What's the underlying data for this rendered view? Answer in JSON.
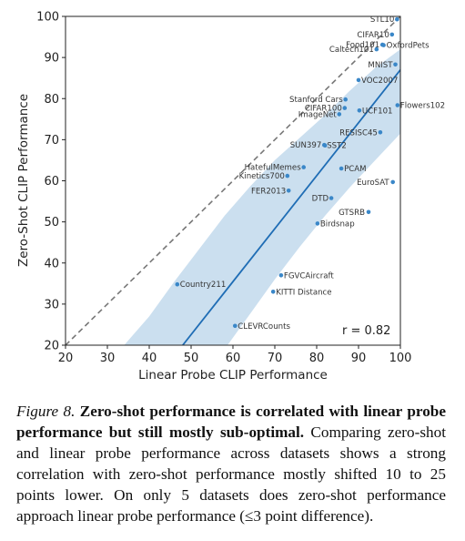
{
  "chart_data": {
    "type": "scatter",
    "xlabel": "Linear Probe CLIP Performance",
    "ylabel": "Zero-Shot CLIP Performance",
    "xlim": [
      20,
      100
    ],
    "ylim": [
      20,
      100
    ],
    "xticks": [
      20,
      30,
      40,
      50,
      60,
      70,
      80,
      90,
      100
    ],
    "yticks": [
      20,
      30,
      40,
      50,
      60,
      70,
      80,
      90,
      100
    ],
    "grid": false,
    "annotation": "r = 0.82",
    "colors": {
      "points": "#3a87c8",
      "fit_line": "#1f6db5",
      "band": "#b9d4ea",
      "diagonal": "#777777"
    },
    "diagonal": {
      "style": "dashed",
      "x": [
        20,
        100
      ],
      "y": [
        20,
        100
      ]
    },
    "fit_line": {
      "x": [
        48,
        100
      ],
      "y": [
        20,
        87
      ]
    },
    "confidence_band": {
      "x": [
        34,
        40,
        46,
        52,
        58,
        64,
        70,
        76,
        82,
        88,
        94,
        100
      ],
      "upper": [
        20,
        27,
        35.5,
        43.5,
        51.5,
        58.5,
        65,
        70.5,
        76,
        82,
        87.5,
        92
      ],
      "lower": [
        -2,
        3,
        8,
        13,
        19,
        27.5,
        36,
        44,
        51.5,
        58.5,
        65,
        71.5
      ]
    },
    "points": [
      {
        "label": "STL10",
        "x": 99.2,
        "y": 99.3,
        "anchor": "end",
        "dx": -3,
        "dy": 3
      },
      {
        "label": "CIFAR10",
        "x": 98.0,
        "y": 95.6,
        "anchor": "end",
        "dx": -3,
        "dy": 3
      },
      {
        "label": "Food101",
        "x": 95.7,
        "y": 93.1,
        "anchor": "end",
        "dx": -3,
        "dy": 3
      },
      {
        "label": "OxfordPets",
        "x": 96.0,
        "y": 93.0,
        "anchor": "start",
        "dx": 3,
        "dy": 3
      },
      {
        "label": "Caltech101",
        "x": 94.3,
        "y": 92.0,
        "anchor": "end",
        "dx": -3,
        "dy": 3
      },
      {
        "label": "MNIST",
        "x": 98.8,
        "y": 88.3,
        "anchor": "end",
        "dx": -3,
        "dy": 3
      },
      {
        "label": "VOC2007",
        "x": 90.0,
        "y": 84.5,
        "anchor": "start",
        "dx": 3,
        "dy": 3
      },
      {
        "label": "Flowers102",
        "x": 99.3,
        "y": 78.4,
        "anchor": "start",
        "dx": 3,
        "dy": 3
      },
      {
        "label": "Stanford Cars",
        "x": 86.9,
        "y": 79.8,
        "anchor": "end",
        "dx": -3,
        "dy": 3
      },
      {
        "label": "CIFAR100",
        "x": 86.7,
        "y": 77.7,
        "anchor": "end",
        "dx": -3,
        "dy": 3
      },
      {
        "label": "ImageNet",
        "x": 85.4,
        "y": 76.2,
        "anchor": "end",
        "dx": -3,
        "dy": 3
      },
      {
        "label": "UCF101",
        "x": 90.2,
        "y": 77.1,
        "anchor": "start",
        "dx": 3,
        "dy": 3
      },
      {
        "label": "RESISC45",
        "x": 95.2,
        "y": 71.8,
        "anchor": "end",
        "dx": -3,
        "dy": 3
      },
      {
        "label": "SUN397",
        "x": 81.8,
        "y": 68.7,
        "anchor": "end",
        "dx": -3,
        "dy": 3
      },
      {
        "label": "SST2",
        "x": 82.0,
        "y": 68.6,
        "anchor": "start",
        "dx": 2,
        "dy": 3
      },
      {
        "label": "HatefulMemes",
        "x": 76.9,
        "y": 63.3,
        "anchor": "end",
        "dx": -3,
        "dy": 3
      },
      {
        "label": "Kinetics700",
        "x": 73.0,
        "y": 61.2,
        "anchor": "end",
        "dx": -3,
        "dy": 3
      },
      {
        "label": "PCAM",
        "x": 85.9,
        "y": 63.0,
        "anchor": "start",
        "dx": 3,
        "dy": 3
      },
      {
        "label": "EuroSAT",
        "x": 98.2,
        "y": 59.7,
        "anchor": "end",
        "dx": -4,
        "dy": 3
      },
      {
        "label": "FER2013",
        "x": 73.3,
        "y": 57.6,
        "anchor": "end",
        "dx": -3,
        "dy": 3
      },
      {
        "label": "DTD",
        "x": 83.5,
        "y": 55.8,
        "anchor": "end",
        "dx": -3,
        "dy": 3
      },
      {
        "label": "GTSRB",
        "x": 92.4,
        "y": 52.4,
        "anchor": "end",
        "dx": -4,
        "dy": 3
      },
      {
        "label": "Birdsnap",
        "x": 80.2,
        "y": 49.6,
        "anchor": "start",
        "dx": 3,
        "dy": 3
      },
      {
        "label": "Country211",
        "x": 46.7,
        "y": 34.8,
        "anchor": "start",
        "dx": 3,
        "dy": 3
      },
      {
        "label": "FGVCAircraft",
        "x": 71.5,
        "y": 37.0,
        "anchor": "start",
        "dx": 3,
        "dy": 3
      },
      {
        "label": "KITTI Distance",
        "x": 69.6,
        "y": 33.0,
        "anchor": "start",
        "dx": 3,
        "dy": 3
      },
      {
        "label": "CLEVRCounts",
        "x": 60.5,
        "y": 24.7,
        "anchor": "start",
        "dx": 3,
        "dy": 3
      }
    ]
  },
  "caption": {
    "figure_label": "Figure 8.",
    "bold_text": "Zero-shot performance is correlated with linear probe performance but still mostly sub-optimal.",
    "body_text": "Comparing zero-shot and linear probe performance across datasets shows a strong correlation with zero-shot performance mostly shifted 10 to 25 points lower. On only 5 datasets does zero-shot performance approach linear probe performance (≤3 point difference)."
  }
}
